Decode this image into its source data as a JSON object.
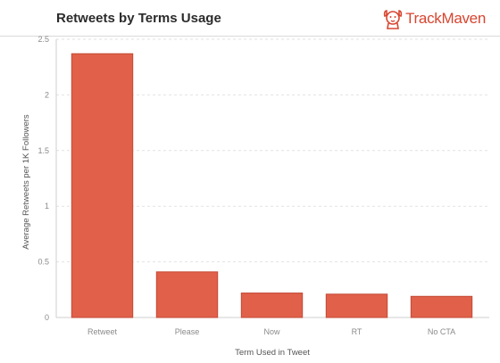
{
  "header": {
    "title": "Retweets by Terms Usage",
    "brand": "TrackMaven",
    "logo_icon": "dog-icon",
    "brand_color": "#d8452f"
  },
  "chart_data": {
    "type": "bar",
    "title": "Retweets by Terms Usage",
    "xlabel": "Term Used in Tweet",
    "ylabel": "Average Retweets per 1K Followers",
    "categories": [
      "Retweet",
      "Please",
      "Now",
      "RT",
      "No CTA"
    ],
    "values": [
      2.37,
      0.41,
      0.22,
      0.21,
      0.19
    ],
    "ylim": [
      0,
      2.5
    ],
    "yticks": [
      "0",
      "0.5",
      "1",
      "1.5",
      "2",
      "2.5"
    ],
    "ytick_values": [
      0,
      0.5,
      1,
      1.5,
      2,
      2.5
    ],
    "grid": true,
    "legend": "none",
    "bar_color": "#e0604a",
    "bar_edge_color": "#c44a35"
  }
}
